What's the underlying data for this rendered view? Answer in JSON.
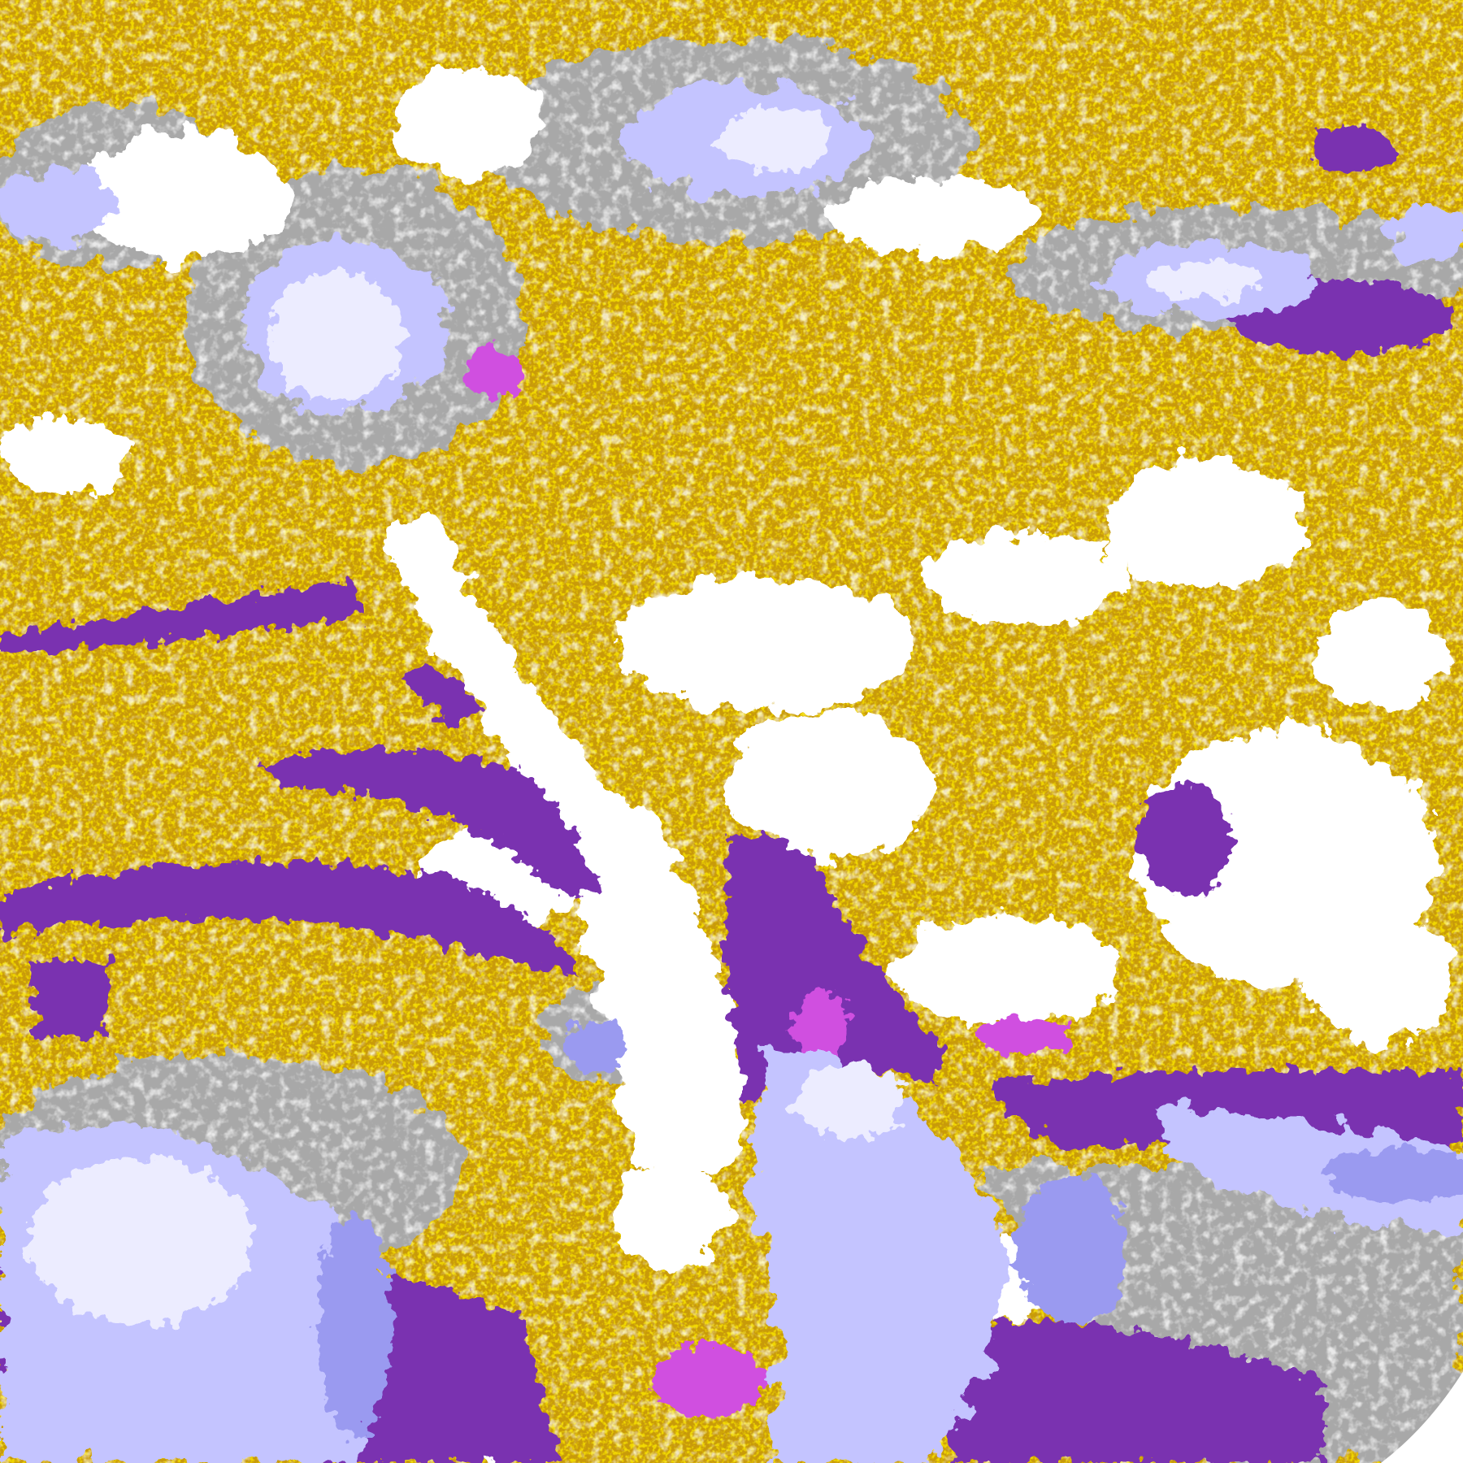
{
  "map": {
    "type": "satellite cloud classification imagery",
    "palette": {
      "clear": "#ffffff",
      "low_cloud_gold": "#c89a0a",
      "low_cloud_bright": "#e0b000",
      "mid_cloud_purple": "#7a30b0",
      "magenta": "#d050e0",
      "lavender": "#c4c4ff",
      "periwinkle": "#9a9af0",
      "pale_lavender": "#ececff",
      "gray": "#a8a8a8",
      "dark_gray": "#8c8c8c"
    }
  }
}
